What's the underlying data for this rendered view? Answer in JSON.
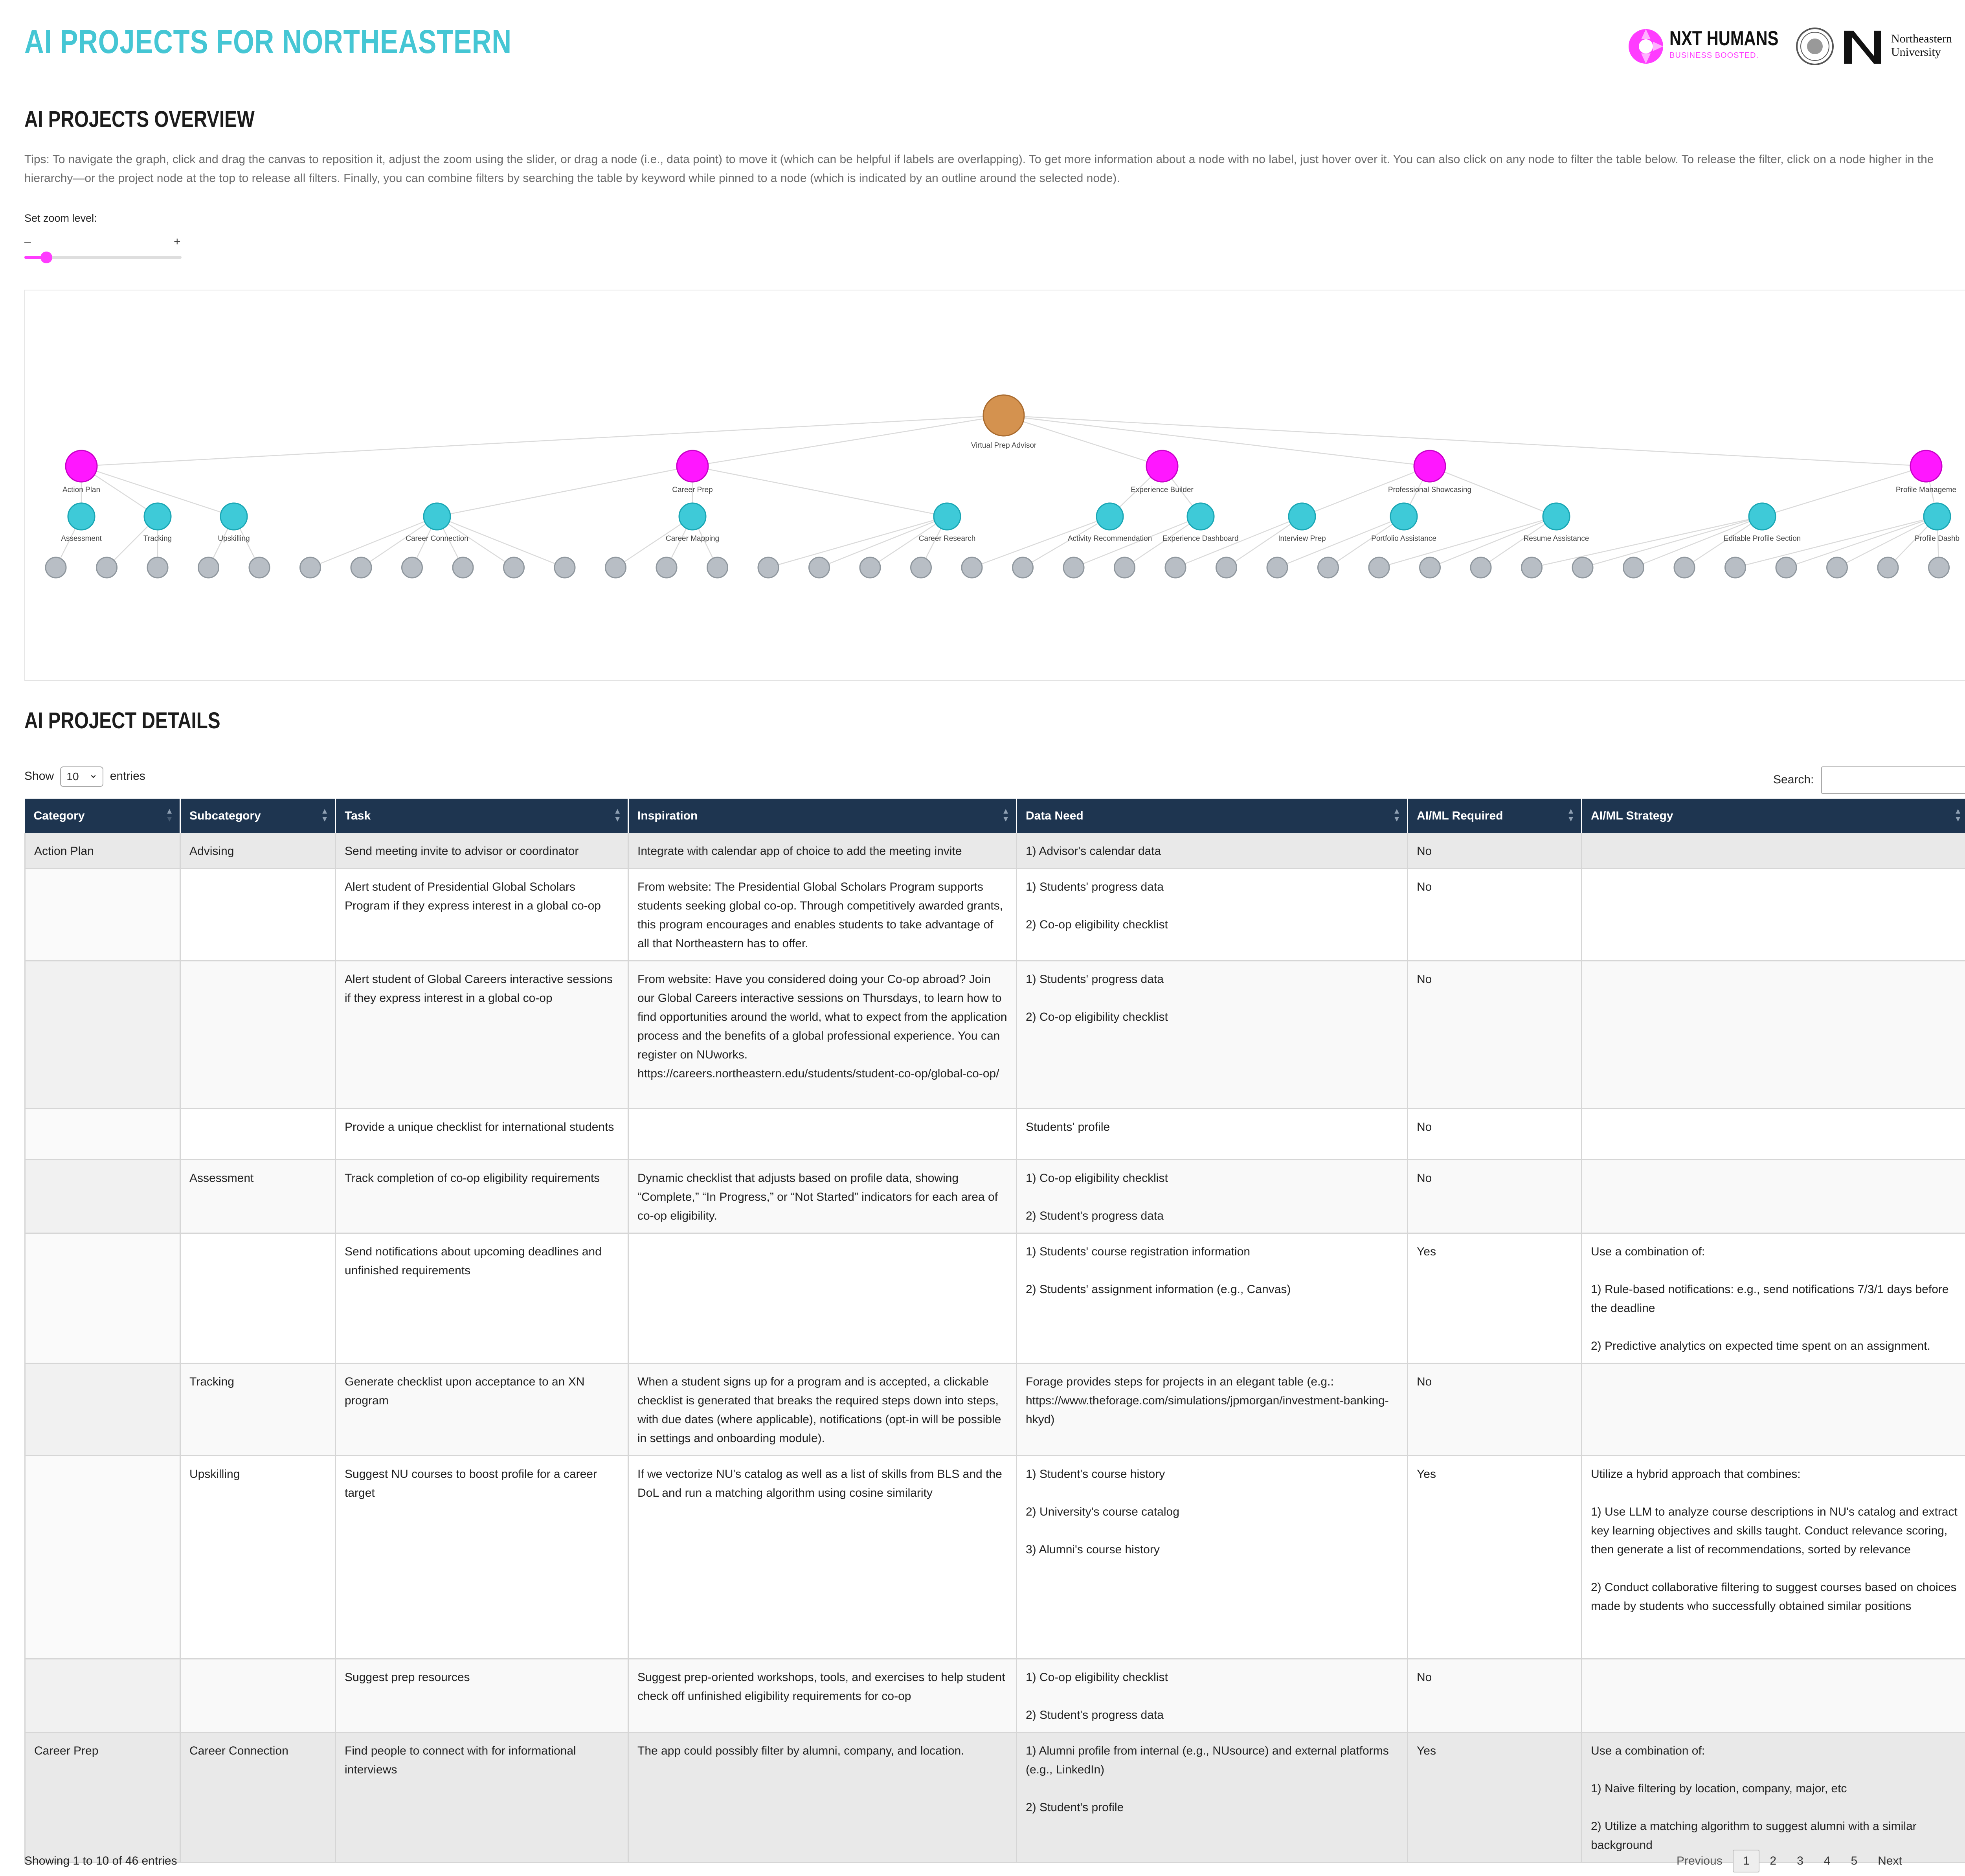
{
  "header": {
    "title": "AI PROJECTS FOR NORTHEASTERN",
    "logo_nxt_name": "NXT HUMANS",
    "logo_nxt_tagline": "BUSINESS BOOSTED.",
    "logo_nu_line1": "Northeastern",
    "logo_nu_line2": "University",
    "colors": {
      "title": "#45c6d4",
      "accent": "#ff3cff",
      "header_bg": "#1e3550"
    }
  },
  "overview": {
    "heading": "AI PROJECTS OVERVIEW",
    "tips": "Tips: To navigate the graph, click and drag the canvas to reposition it, adjust the zoom using the slider, or drag a node (i.e., data point) to move it (which can be helpful if labels are overlapping). To get more information about a node with no label, just hover over it. You can also click on any node to filter the table below. To release the filter, click on a node higher in the hierarchy—or the project node at the top to release all filters. Finally, you can combine filters by searching the table by keyword while pinned to a node (which is indicated by an outline around the selected node).",
    "zoom_label": "Set zoom level:",
    "zoom_minus": "–",
    "zoom_plus": "+",
    "zoom_level": 0.15
  },
  "graph": {
    "root": "Virtual Prep Advisor",
    "categories": [
      "Action Plan",
      "Career Prep",
      "Experience Builder",
      "Professional Showcasing",
      "Profile Manageme"
    ],
    "subcategories": [
      "Assessment",
      "Tracking",
      "Upskilling",
      "Career Connection",
      "Career Mapping",
      "Career Research",
      "Activity Recommendation",
      "Experience Dashboard",
      "Interview Prep",
      "Portfolio Assistance",
      "Resume Assistance",
      "Editable Profile Section",
      "Profile Dashb"
    ],
    "node_colors": {
      "root": "#d4924f",
      "category": "#ff17ff",
      "subcategory": "#3ecad8",
      "task": "#b8bec5"
    }
  },
  "details": {
    "heading": "AI PROJECT DETAILS",
    "show_label": "Show",
    "entries_value": "10",
    "entries_label": "entries",
    "search_label": "Search:",
    "columns": [
      "Category",
      "Subcategory",
      "Task",
      "Inspiration",
      "Data Need",
      "AI/ML Required",
      "AI/ML Strategy"
    ],
    "rows": [
      {
        "category": "Action Plan",
        "subcategory": "Advising",
        "task": "Send meeting invite to advisor or coordinator",
        "inspiration": "Integrate with calendar app of choice to add the meeting invite",
        "data_need": "1) Advisor's calendar data",
        "required": "No",
        "strategy": ""
      },
      {
        "category": "",
        "subcategory": "",
        "task": "Alert student of Presidential Global Scholars Program if they express interest in a global co-op",
        "inspiration": "From website: The Presidential Global Scholars Program supports students seeking global co-op. Through competitively awarded grants, this program encourages and enables students to take advantage of all that Northeastern has to offer.",
        "data_need": "1) Students' progress data\n\n2) Co-op eligibility checklist",
        "required": "No",
        "strategy": ""
      },
      {
        "category": "",
        "subcategory": "",
        "task": "Alert student of Global Careers interactive sessions if they express interest in a global co-op",
        "inspiration": "From website: Have you considered doing your Co-op abroad? Join our Global Careers interactive sessions on Thursdays, to learn how to find opportunities around the world, what to expect from the application process and the benefits of a global professional experience. You can register on NUworks. https://careers.northeastern.edu/students/student-co-op/global-co-op/",
        "data_need": "1) Students' progress data\n\n2) Co-op eligibility checklist",
        "required": "No",
        "strategy": ""
      },
      {
        "category": "",
        "subcategory": "",
        "task": "Provide a unique checklist for international students",
        "inspiration": "",
        "data_need": "Students' profile",
        "required": "No",
        "strategy": ""
      },
      {
        "category": "",
        "subcategory": "Assessment",
        "task": "Track completion of co-op eligibility requirements",
        "inspiration": "Dynamic checklist that adjusts based on profile data, showing “Complete,” “In Progress,” or “Not Started” indicators for each area of co-op eligibility.",
        "data_need": "1) Co-op eligibility checklist\n\n2) Student's progress data",
        "required": "No",
        "strategy": ""
      },
      {
        "category": "",
        "subcategory": "",
        "task": "Send notifications about upcoming deadlines and unfinished requirements",
        "inspiration": "",
        "data_need": "1) Students' course registration information\n\n2) Students' assignment information (e.g., Canvas)",
        "required": "Yes",
        "strategy": "Use a combination of:\n\n1) Rule-based notifications: e.g., send notifications 7/3/1 days before the deadline\n\n2) Predictive analytics on expected time spent on an assignment."
      },
      {
        "category": "",
        "subcategory": "Tracking",
        "task": "Generate checklist upon acceptance to an XN program",
        "inspiration": "When a student signs up for a program and is accepted, a clickable checklist is generated that breaks the required steps down into steps, with due dates (where applicable), notifications (opt-in will be possible in settings and onboarding module).",
        "data_need": "Forage provides steps for projects in an elegant table (e.g.: https://www.theforage.com/simulations/jpmorgan/investment-banking-hkyd)",
        "required": "No",
        "strategy": ""
      },
      {
        "category": "",
        "subcategory": "Upskilling",
        "task": "Suggest NU courses to boost profile for a career target",
        "inspiration": "If we vectorize NU's catalog as well as a list of skills from BLS and the DoL and run a matching algorithm using cosine similarity",
        "data_need": "1) Student's course history\n\n2) University's course catalog\n\n3) Alumni's course history",
        "required": "Yes",
        "strategy": "Utilize a hybrid approach that combines:\n\n1) Use LLM to analyze course descriptions in NU's catalog and extract key learning objectives and skills taught. Conduct relevance scoring, then generate a list of recommendations, sorted by relevance\n\n2) Conduct collaborative filtering to suggest courses based on choices made by students who successfully obtained similar positions"
      },
      {
        "category": "",
        "subcategory": "",
        "task": "Suggest prep resources",
        "inspiration": "Suggest prep-oriented workshops, tools, and exercises to help student check off unfinished eligibility requirements for co-op",
        "data_need": "1) Co-op eligibility checklist\n\n2) Student's progress data",
        "required": "No",
        "strategy": ""
      },
      {
        "category": "Career Prep",
        "subcategory": "Career Connection",
        "task": "Find people to connect with for informational interviews",
        "inspiration": "The app could possibly filter by alumni, company, and location.",
        "data_need": "1) Alumni profile from internal (e.g., NUsource) and external platforms (e.g., LinkedIn)\n\n2) Student's profile",
        "required": "Yes",
        "strategy": "Use a combination of:\n\n1) Naive filtering by location, company, major, etc\n\n2) Utilize a matching algorithm to suggest alumni with a similar background"
      }
    ],
    "info": "Showing 1 to 10 of 46 entries",
    "pager": {
      "previous": "Previous",
      "pages": [
        "1",
        "2",
        "3",
        "4",
        "5"
      ],
      "next": "Next",
      "current": "1"
    }
  }
}
